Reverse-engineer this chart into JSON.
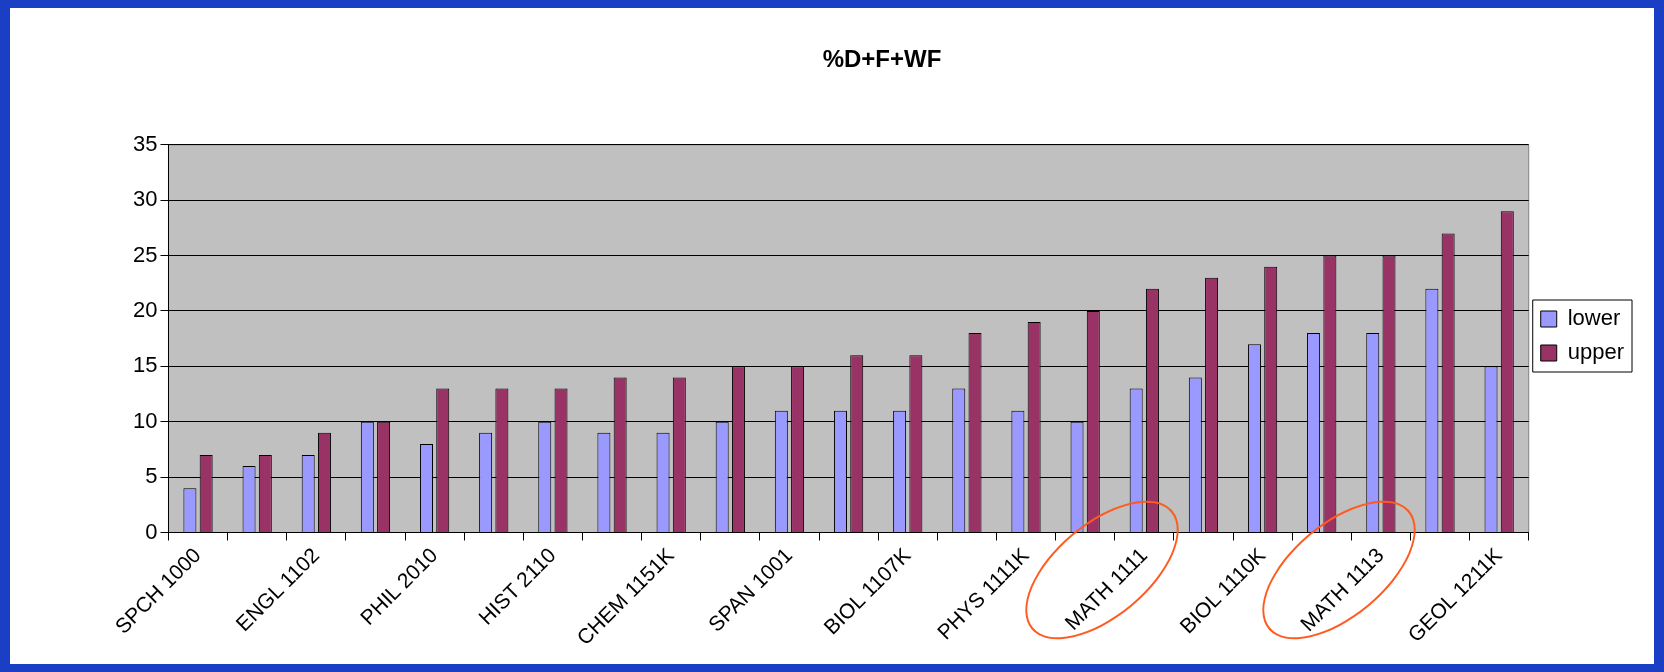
{
  "chart_data": {
    "type": "bar",
    "title": "%D+F+WF",
    "categories": [
      "SPCH 1000",
      null,
      "ENGL 1102",
      null,
      "PHIL 2010",
      null,
      "HIST 2110",
      null,
      "CHEM 1151K",
      null,
      "SPAN 1001",
      null,
      "BIOL 1107K",
      null,
      "PHYS 1111K",
      null,
      "MATH 1111",
      null,
      "BIOL 1110K",
      null,
      "MATH 1113",
      null,
      "GEOL 1211K"
    ],
    "series": [
      {
        "name": "lower",
        "color": "#9999ff",
        "values": [
          4,
          6,
          7,
          10,
          8,
          9,
          10,
          9,
          9,
          10,
          11,
          11,
          11,
          13,
          11,
          10,
          13,
          14,
          17,
          18,
          18,
          22,
          15
        ]
      },
      {
        "name": "upper",
        "color": "#993366",
        "values": [
          7,
          7,
          9,
          10,
          13,
          13,
          13,
          14,
          14,
          15,
          15,
          16,
          16,
          18,
          19,
          20,
          22,
          23,
          24,
          25,
          25,
          27,
          29
        ]
      }
    ],
    "ylim": [
      0,
      35
    ],
    "yticks": [
      0,
      5,
      10,
      15,
      20,
      25,
      30,
      35
    ],
    "grid": "y",
    "legend": "right"
  }
}
